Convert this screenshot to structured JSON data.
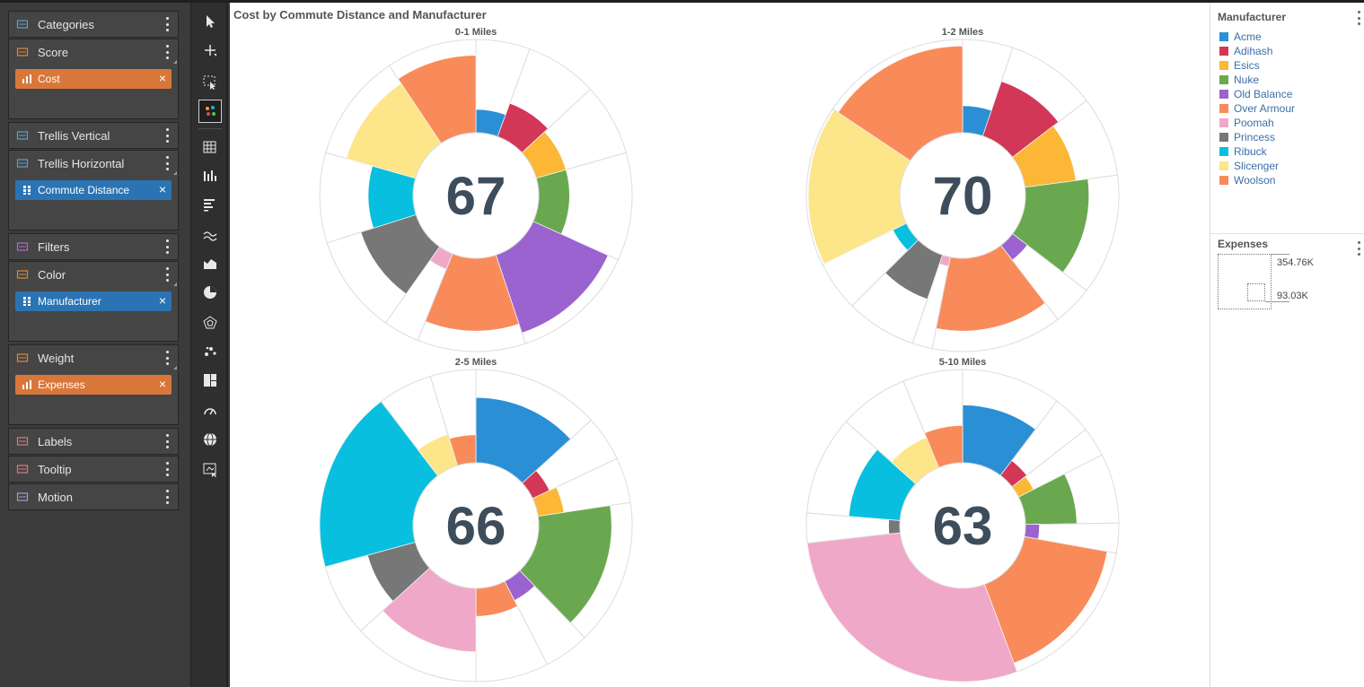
{
  "wells": {
    "items": [
      {
        "key": "categories",
        "title": "Categories",
        "chips": []
      },
      {
        "key": "score",
        "title": "Score",
        "chips": [
          {
            "label": "Cost",
            "color": "orange"
          }
        ]
      },
      {
        "key": "trellis_vertical",
        "title": "Trellis Vertical",
        "chips": []
      },
      {
        "key": "trellis_horizontal",
        "title": "Trellis Horizontal",
        "chips": [
          {
            "label": "Commute Distance",
            "color": "blue"
          }
        ]
      },
      {
        "key": "filters",
        "title": "Filters",
        "chips": []
      },
      {
        "key": "color",
        "title": "Color",
        "chips": [
          {
            "label": "Manufacturer",
            "color": "blue"
          }
        ]
      },
      {
        "key": "weight",
        "title": "Weight",
        "chips": [
          {
            "label": "Expenses",
            "color": "orange"
          }
        ]
      },
      {
        "key": "labels",
        "title": "Labels",
        "chips": []
      },
      {
        "key": "tooltip",
        "title": "Tooltip",
        "chips": []
      },
      {
        "key": "motion",
        "title": "Motion",
        "chips": []
      }
    ],
    "chip_remove": "×"
  },
  "toolbar": {
    "tools": [
      "pointer-icon",
      "add-icon",
      "select-region-icon",
      "scatter-pick-icon",
      "table-grid-icon",
      "column-chart-icon",
      "bar-chart-icon",
      "line-chart-icon",
      "area-chart-icon",
      "pie-chart-icon",
      "radar-chart-icon",
      "scatter-chart-icon",
      "treemap-icon",
      "gauge-icon",
      "globe-map-icon",
      "custom-visual-icon"
    ],
    "active": "scatter-pick-icon"
  },
  "chart": {
    "title": "Cost by Commute Distance and Manufacturer"
  },
  "chart_data": {
    "type": "radial-bar",
    "title": "Cost by Commute Distance and Manufacturer",
    "manufacturers": [
      "Acme",
      "Adihash",
      "Esics",
      "Nuke",
      "Old Balance",
      "Over Armour",
      "Poomah",
      "Princess",
      "Ribuck",
      "Slicenger",
      "Woolson"
    ],
    "colors": {
      "Acme": "#2b8fd6",
      "Adihash": "#d23757",
      "Esics": "#fbb735",
      "Nuke": "#6aa84f",
      "Old Balance": "#9a63cf",
      "Over Armour": "#f98b5a",
      "Poomah": "#f0a8c8",
      "Princess": "#777777",
      "Ribuck": "#08bfdf",
      "Slicenger": "#fde589",
      "Woolson": "#f98b5a"
    },
    "panels": [
      {
        "name": "0-1 Miles",
        "score": "67",
        "weights": [
          0.6,
          0.8,
          0.8,
          1.2,
          1.4,
          1.2,
          0.4,
          1.1,
          1.0,
          1.2,
          1.0
        ],
        "values": [
          0.25,
          0.38,
          0.33,
          0.33,
          0.88,
          0.78,
          0.18,
          0.62,
          0.48,
          0.77,
          0.83
        ]
      },
      {
        "name": "1-2 Miles",
        "score": "70",
        "weights": [
          0.5,
          0.9,
          0.8,
          1.2,
          0.4,
          1.3,
          0.2,
          0.7,
          0.5,
          1.6,
          1.5
        ],
        "values": [
          0.29,
          0.62,
          0.55,
          0.68,
          0.2,
          0.78,
          0.1,
          0.5,
          0.16,
          0.98,
          0.93
        ]
      },
      {
        "name": "2-5 Miles",
        "score": "66",
        "weights": [
          1.4,
          0.5,
          0.5,
          1.6,
          0.5,
          0.8,
          1.4,
          0.8,
          2.0,
          0.6,
          0.5
        ],
        "values": [
          0.7,
          0.2,
          0.28,
          0.78,
          0.23,
          0.3,
          0.68,
          0.53,
          1.0,
          0.35,
          0.3
        ]
      },
      {
        "name": "5-10 Miles",
        "score": "63",
        "weights": [
          1.0,
          0.4,
          0.3,
          0.7,
          0.3,
          1.6,
          2.8,
          0.3,
          1.0,
          0.7,
          0.6
        ],
        "values": [
          0.62,
          0.2,
          0.18,
          0.55,
          0.15,
          0.9,
          1.0,
          0.12,
          0.55,
          0.35,
          0.4
        ]
      }
    ],
    "weight_legend": {
      "title": "Expenses",
      "max": "354.76K",
      "min": "93.03K"
    }
  },
  "legend": {
    "title": "Manufacturer",
    "items": [
      {
        "label": "Acme",
        "color": "#2b8fd6"
      },
      {
        "label": "Adihash",
        "color": "#d23757"
      },
      {
        "label": "Esics",
        "color": "#fbb735"
      },
      {
        "label": "Nuke",
        "color": "#6aa84f"
      },
      {
        "label": "Old Balance",
        "color": "#9a63cf"
      },
      {
        "label": "Over Armour",
        "color": "#f98b5a"
      },
      {
        "label": "Poomah",
        "color": "#f0a8c8"
      },
      {
        "label": "Princess",
        "color": "#777777"
      },
      {
        "label": "Ribuck",
        "color": "#08bfdf"
      },
      {
        "label": "Slicenger",
        "color": "#fde589"
      },
      {
        "label": "Woolson",
        "color": "#f98b5a"
      }
    ]
  },
  "size_legend": {
    "title": "Expenses",
    "max_label": "354.76K",
    "min_label": "93.03K"
  }
}
